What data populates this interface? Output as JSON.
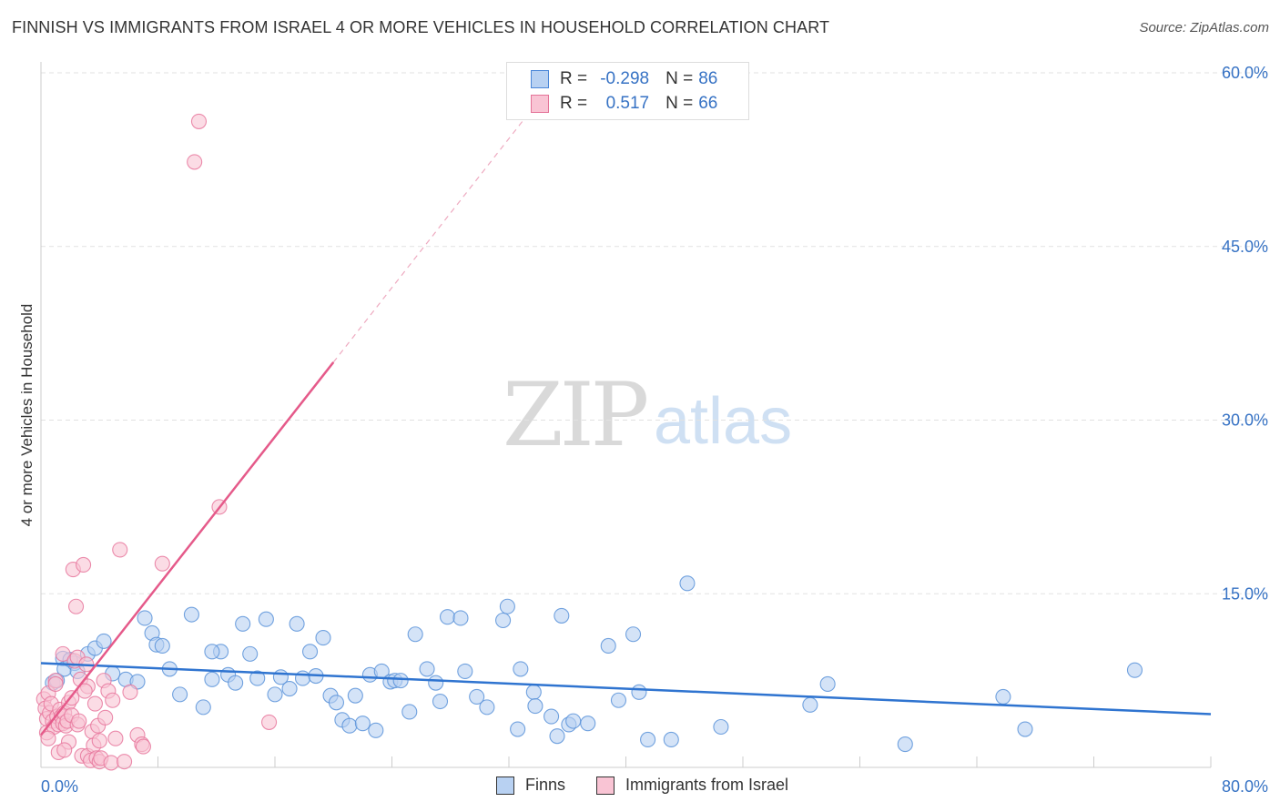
{
  "title": "FINNISH VS IMMIGRANTS FROM ISRAEL 4 OR MORE VEHICLES IN HOUSEHOLD CORRELATION CHART",
  "source": "Source: ZipAtlas.com",
  "watermark_zip": "ZIP",
  "watermark_atlas": "atlas",
  "legend": {
    "r_label": "R =",
    "n_label": "N =",
    "series": [
      {
        "name": "Finns",
        "r": "-0.298",
        "n": "86"
      },
      {
        "name": "Immigrants from Israel",
        "r": "0.517",
        "n": "66"
      }
    ]
  },
  "colors": {
    "blue_fill": "#b8d1f2",
    "blue_stroke": "#5b93d9",
    "blue_line": "#2f74d0",
    "pink_fill": "#f9c4d4",
    "pink_stroke": "#e8789d",
    "pink_line": "#e55a8a",
    "tick_text": "#3672c4",
    "grid": "#e2e2e2"
  },
  "chart_data": {
    "type": "scatter",
    "title": "FINNISH VS IMMIGRANTS FROM ISRAEL 4 OR MORE VEHICLES IN HOUSEHOLD CORRELATION CHART",
    "xlabel": "",
    "ylabel": "4 or more Vehicles in Household",
    "xlim": [
      0,
      80
    ],
    "ylim": [
      0,
      60
    ],
    "x_tick_labels": [
      "0.0%",
      "80.0%"
    ],
    "y_ticks": [
      15,
      30,
      45,
      60
    ],
    "y_tick_labels": [
      "15.0%",
      "30.0%",
      "45.0%",
      "60.0%"
    ],
    "series": [
      {
        "name": "Finns",
        "trend": {
          "x": [
            0,
            80
          ],
          "y": [
            9.0,
            4.6
          ],
          "style": "solid"
        },
        "points": [
          [
            0.8,
            7.3
          ],
          [
            1.1,
            7.5
          ],
          [
            1.5,
            9.4
          ],
          [
            1.6,
            8.5
          ],
          [
            2.3,
            9.0
          ],
          [
            2.5,
            8.3
          ],
          [
            3.2,
            9.8
          ],
          [
            3.7,
            10.3
          ],
          [
            4.3,
            10.9
          ],
          [
            4.9,
            8.1
          ],
          [
            5.8,
            7.6
          ],
          [
            6.6,
            7.4
          ],
          [
            7.1,
            12.9
          ],
          [
            7.6,
            11.6
          ],
          [
            7.9,
            10.6
          ],
          [
            8.3,
            10.5
          ],
          [
            8.8,
            8.5
          ],
          [
            9.5,
            6.3
          ],
          [
            10.3,
            13.2
          ],
          [
            11.1,
            5.2
          ],
          [
            11.7,
            7.6
          ],
          [
            12.3,
            10.0
          ],
          [
            12.8,
            8.0
          ],
          [
            13.3,
            7.3
          ],
          [
            13.8,
            12.4
          ],
          [
            14.3,
            9.8
          ],
          [
            14.8,
            7.7
          ],
          [
            15.4,
            12.8
          ],
          [
            16.0,
            6.3
          ],
          [
            16.4,
            7.8
          ],
          [
            17.0,
            6.8
          ],
          [
            17.5,
            12.4
          ],
          [
            17.9,
            7.7
          ],
          [
            18.4,
            10.0
          ],
          [
            18.8,
            7.9
          ],
          [
            19.3,
            11.2
          ],
          [
            19.8,
            6.2
          ],
          [
            20.2,
            5.6
          ],
          [
            20.6,
            4.1
          ],
          [
            21.1,
            3.6
          ],
          [
            21.5,
            6.2
          ],
          [
            22.0,
            3.8
          ],
          [
            22.5,
            8.0
          ],
          [
            22.9,
            3.2
          ],
          [
            23.3,
            8.3
          ],
          [
            23.9,
            7.4
          ],
          [
            24.2,
            7.5
          ],
          [
            24.6,
            7.5
          ],
          [
            25.2,
            4.8
          ],
          [
            25.6,
            11.5
          ],
          [
            26.4,
            8.5
          ],
          [
            27.0,
            7.3
          ],
          [
            27.3,
            5.7
          ],
          [
            27.8,
            13.0
          ],
          [
            28.7,
            12.9
          ],
          [
            29.0,
            8.3
          ],
          [
            29.8,
            6.1
          ],
          [
            30.5,
            5.2
          ],
          [
            31.6,
            12.7
          ],
          [
            31.9,
            13.9
          ],
          [
            32.6,
            3.3
          ],
          [
            32.8,
            8.5
          ],
          [
            33.7,
            6.5
          ],
          [
            33.8,
            5.3
          ],
          [
            34.9,
            4.4
          ],
          [
            35.3,
            2.7
          ],
          [
            35.6,
            13.1
          ],
          [
            36.1,
            3.7
          ],
          [
            36.4,
            4.0
          ],
          [
            38.8,
            10.5
          ],
          [
            37.4,
            3.8
          ],
          [
            39.5,
            5.8
          ],
          [
            40.5,
            11.5
          ],
          [
            40.9,
            6.5
          ],
          [
            41.5,
            2.4
          ],
          [
            43.1,
            2.4
          ],
          [
            44.2,
            15.9
          ],
          [
            46.5,
            3.5
          ],
          [
            52.6,
            5.4
          ],
          [
            53.8,
            7.2
          ],
          [
            59.1,
            2.0
          ],
          [
            65.8,
            6.1
          ],
          [
            67.3,
            3.3
          ],
          [
            74.8,
            8.4
          ],
          [
            11.7,
            10.0
          ],
          [
            2.0,
            9.3
          ]
        ]
      },
      {
        "name": "Immigrants from Israel",
        "trend": {
          "x": [
            0,
            20
          ],
          "y": [
            2.8,
            35.0
          ],
          "style": "solid",
          "dashed_extension_to_x": 33.5
        },
        "points": [
          [
            0.2,
            5.9
          ],
          [
            0.3,
            5.1
          ],
          [
            0.4,
            4.2
          ],
          [
            0.4,
            3.0
          ],
          [
            0.5,
            6.4
          ],
          [
            0.6,
            4.7
          ],
          [
            0.7,
            5.5
          ],
          [
            0.8,
            4.0
          ],
          [
            0.9,
            3.5
          ],
          [
            1.0,
            7.5
          ],
          [
            1.1,
            4.4
          ],
          [
            1.2,
            3.7
          ],
          [
            1.2,
            1.3
          ],
          [
            1.3,
            5.0
          ],
          [
            1.4,
            4.4
          ],
          [
            1.5,
            9.8
          ],
          [
            1.5,
            3.8
          ],
          [
            1.6,
            4.7
          ],
          [
            1.7,
            3.6
          ],
          [
            1.8,
            4.0
          ],
          [
            1.9,
            2.2
          ],
          [
            1.9,
            5.6
          ],
          [
            2.1,
            6.0
          ],
          [
            2.1,
            4.5
          ],
          [
            2.2,
            17.1
          ],
          [
            2.3,
            9.2
          ],
          [
            2.4,
            13.9
          ],
          [
            2.5,
            3.7
          ],
          [
            2.5,
            9.5
          ],
          [
            2.7,
            7.6
          ],
          [
            2.8,
            1.0
          ],
          [
            2.9,
            17.5
          ],
          [
            3.1,
            8.9
          ],
          [
            3.2,
            7.0
          ],
          [
            3.2,
            1.0
          ],
          [
            3.4,
            0.6
          ],
          [
            3.5,
            3.1
          ],
          [
            3.6,
            1.9
          ],
          [
            3.7,
            5.5
          ],
          [
            3.8,
            0.8
          ],
          [
            3.9,
            3.6
          ],
          [
            4.0,
            2.3
          ],
          [
            4.0,
            0.5
          ],
          [
            4.1,
            0.8
          ],
          [
            4.3,
            7.5
          ],
          [
            4.4,
            4.3
          ],
          [
            4.6,
            6.6
          ],
          [
            4.8,
            0.4
          ],
          [
            4.9,
            5.8
          ],
          [
            5.1,
            2.5
          ],
          [
            5.4,
            18.8
          ],
          [
            5.7,
            0.5
          ],
          [
            6.1,
            6.5
          ],
          [
            6.6,
            2.8
          ],
          [
            6.9,
            2.0
          ],
          [
            7.0,
            1.8
          ],
          [
            8.3,
            17.6
          ],
          [
            10.5,
            52.3
          ],
          [
            10.8,
            55.8
          ],
          [
            12.2,
            22.5
          ],
          [
            15.6,
            3.9
          ],
          [
            1.0,
            7.2
          ],
          [
            0.5,
            2.5
          ],
          [
            1.6,
            1.5
          ],
          [
            3.0,
            6.6
          ],
          [
            2.6,
            4.0
          ]
        ]
      }
    ]
  }
}
